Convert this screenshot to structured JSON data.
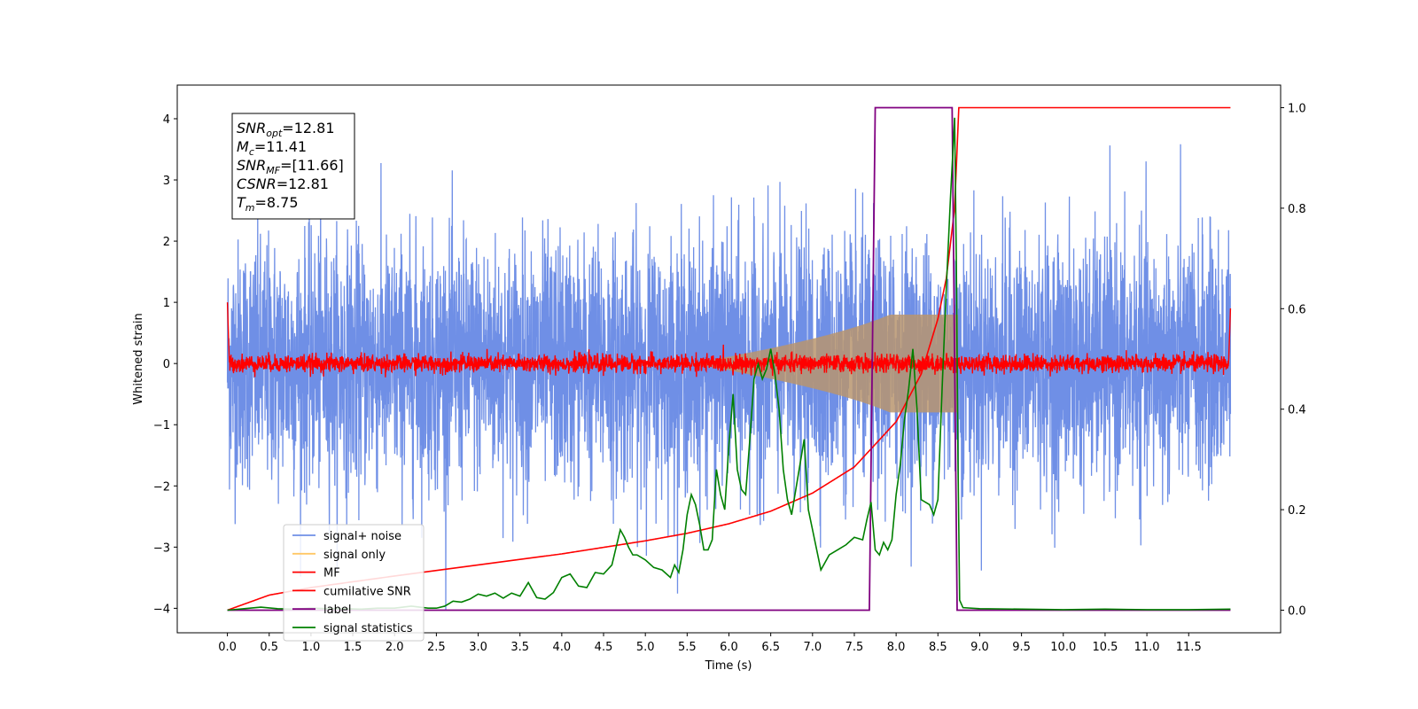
{
  "chart_data": {
    "type": "line",
    "title": "",
    "xlabel": "Time (s)",
    "ylabel": "Whitened strain",
    "xlim": [
      -0.6,
      12.6
    ],
    "ylim": [
      -4.4,
      4.55
    ],
    "y2lim": [
      -0.045,
      1.045
    ],
    "x_ticks": [
      "0.0",
      "0.5",
      "1.0",
      "1.5",
      "2.0",
      "2.5",
      "3.0",
      "3.5",
      "4.0",
      "4.5",
      "5.0",
      "5.5",
      "6.0",
      "6.5",
      "7.0",
      "7.5",
      "8.0",
      "8.5",
      "9.0",
      "9.5",
      "10.0",
      "10.5",
      "11.0",
      "11.5"
    ],
    "y_ticks": [
      "−4",
      "−3",
      "−2",
      "−1",
      "0",
      "1",
      "2",
      "3",
      "4"
    ],
    "y2_ticks": [
      "0.0",
      "0.2",
      "0.4",
      "0.6",
      "0.8",
      "1.0"
    ],
    "colors": {
      "signal_noise": "#6f8fe6",
      "signal_only": "#ffc766",
      "overlap": "#b8956e",
      "mf": "#ff0000",
      "cum_snr": "#ff0000",
      "label": "#800080",
      "stats": "#008000"
    },
    "series": [
      {
        "name": "signal+ noise",
        "axis": "left",
        "x_range": [
          0,
          12
        ],
        "amplitude_envelope": 4.2,
        "note_values": "dense noise, ~±2 typical"
      },
      {
        "name": "signal only",
        "axis": "left",
        "chirp_peak_time": 8.75,
        "chirp_peak_amplitude": 0.75
      },
      {
        "name": "MF",
        "axis": "left",
        "x_range": [
          0,
          12
        ],
        "start": 1.0,
        "end": 0.9,
        "noise_level": 0.12
      },
      {
        "name": "cumilative SNR",
        "axis": "right",
        "x": [
          0.0,
          0.5,
          1.0,
          2.0,
          3.0,
          4.0,
          5.0,
          5.5,
          6.0,
          6.5,
          7.0,
          7.5,
          8.0,
          8.3,
          8.5,
          8.6,
          8.7,
          8.75,
          12.0
        ],
        "values": [
          0.0,
          0.03,
          0.045,
          0.068,
          0.09,
          0.112,
          0.138,
          0.153,
          0.172,
          0.197,
          0.233,
          0.285,
          0.375,
          0.47,
          0.58,
          0.66,
          0.8,
          1.0,
          1.0
        ]
      },
      {
        "name": "label",
        "axis": "right",
        "x": [
          0.0,
          7.68,
          7.75,
          8.67,
          8.73,
          12.0
        ],
        "values": [
          0.0,
          0.0,
          1.0,
          1.0,
          0.0,
          0.0
        ]
      },
      {
        "name": "signal statistics",
        "axis": "right",
        "x": [
          0.0,
          0.2,
          0.4,
          0.6,
          0.8,
          1.0,
          1.2,
          1.4,
          1.6,
          1.8,
          2.0,
          2.1,
          2.2,
          2.3,
          2.4,
          2.5,
          2.6,
          2.7,
          2.8,
          2.9,
          3.0,
          3.1,
          3.2,
          3.3,
          3.4,
          3.5,
          3.6,
          3.7,
          3.8,
          3.9,
          4.0,
          4.1,
          4.2,
          4.3,
          4.4,
          4.5,
          4.6,
          4.7,
          4.75,
          4.8,
          4.85,
          4.9,
          5.0,
          5.1,
          5.2,
          5.3,
          5.35,
          5.4,
          5.45,
          5.5,
          5.55,
          5.6,
          5.65,
          5.7,
          5.75,
          5.8,
          5.85,
          5.9,
          5.95,
          6.0,
          6.05,
          6.1,
          6.15,
          6.2,
          6.25,
          6.3,
          6.35,
          6.4,
          6.45,
          6.5,
          6.55,
          6.6,
          6.65,
          6.7,
          6.75,
          6.8,
          6.85,
          6.9,
          6.95,
          7.0,
          7.05,
          7.1,
          7.2,
          7.3,
          7.4,
          7.5,
          7.6,
          7.65,
          7.7,
          7.75,
          7.8,
          7.85,
          7.9,
          7.95,
          8.0,
          8.05,
          8.1,
          8.15,
          8.2,
          8.25,
          8.3,
          8.4,
          8.45,
          8.5,
          8.55,
          8.6,
          8.65,
          8.7,
          8.72,
          8.74,
          8.76,
          8.8,
          9.0,
          9.5,
          10.0,
          10.5,
          11.0,
          11.5,
          12.0
        ],
        "values": [
          0.0,
          0.003,
          0.006,
          0.003,
          0.002,
          0.004,
          0.003,
          0.003,
          0.002,
          0.004,
          0.004,
          0.006,
          0.008,
          0.006,
          0.004,
          0.004,
          0.008,
          0.018,
          0.016,
          0.022,
          0.032,
          0.028,
          0.034,
          0.024,
          0.034,
          0.028,
          0.055,
          0.025,
          0.022,
          0.035,
          0.065,
          0.072,
          0.048,
          0.045,
          0.075,
          0.072,
          0.09,
          0.16,
          0.145,
          0.125,
          0.11,
          0.11,
          0.1,
          0.085,
          0.08,
          0.065,
          0.09,
          0.075,
          0.12,
          0.19,
          0.23,
          0.21,
          0.17,
          0.12,
          0.12,
          0.14,
          0.28,
          0.23,
          0.2,
          0.33,
          0.43,
          0.28,
          0.24,
          0.23,
          0.34,
          0.46,
          0.49,
          0.46,
          0.48,
          0.52,
          0.47,
          0.4,
          0.28,
          0.22,
          0.19,
          0.24,
          0.29,
          0.34,
          0.2,
          0.16,
          0.12,
          0.08,
          0.11,
          0.12,
          0.13,
          0.145,
          0.14,
          0.18,
          0.215,
          0.12,
          0.11,
          0.135,
          0.12,
          0.14,
          0.23,
          0.29,
          0.38,
          0.44,
          0.52,
          0.4,
          0.22,
          0.21,
          0.19,
          0.22,
          0.44,
          0.64,
          0.82,
          0.98,
          0.7,
          0.3,
          0.02,
          0.005,
          0.003,
          0.002,
          0.001,
          0.002,
          0.001,
          0.001,
          0.002
        ]
      }
    ],
    "legend": {
      "placement": "lower-left",
      "entries": [
        "signal+ noise",
        "signal only",
        "MF",
        "cumilative SNR",
        "label",
        "signal statistics"
      ]
    },
    "annotation": {
      "lines": [
        {
          "var": "SNR",
          "sub": "opt",
          "value": "=12.81"
        },
        {
          "var": "M",
          "sub": "c",
          "value": "=11.41"
        },
        {
          "var": "SNR",
          "sub": "MF",
          "value": "=[11.66]"
        },
        {
          "var": "CSNR",
          "sub": "",
          "value": "=12.81"
        },
        {
          "var": "T",
          "sub": "m",
          "value": "=8.75"
        }
      ]
    },
    "grid": false
  }
}
